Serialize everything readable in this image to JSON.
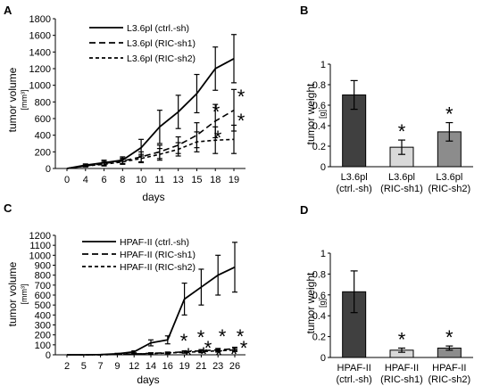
{
  "chart_data": [
    {
      "panel": "A",
      "type": "line",
      "ylabel": "tumor volume",
      "ylabel_unit": "[mm³]",
      "xlabel": "days",
      "ylim": [
        0,
        1800
      ],
      "yticks": [
        0,
        200,
        400,
        600,
        800,
        1000,
        1200,
        1400,
        1600,
        1800
      ],
      "categories": [
        "0",
        "4",
        "6",
        "8",
        "10",
        "11",
        "13",
        "15",
        "18",
        "19"
      ],
      "series": [
        {
          "name": "L3.6pl (ctrl.-sh)",
          "style": "solid",
          "values": [
            0,
            40,
            70,
            100,
            250,
            500,
            680,
            900,
            1200,
            1320
          ],
          "errors": [
            0,
            15,
            30,
            40,
            100,
            200,
            200,
            230,
            260,
            290
          ]
        },
        {
          "name": "L3.6pl (RIC-sh1)",
          "style": "dashed",
          "values": [
            0,
            30,
            60,
            90,
            140,
            200,
            280,
            400,
            570,
            700
          ],
          "errors": [
            0,
            10,
            25,
            35,
            60,
            80,
            100,
            150,
            200,
            250
          ]
        },
        {
          "name": "L3.6pl (RIC-sh2)",
          "style": "short-dashed",
          "values": [
            0,
            30,
            50,
            80,
            120,
            170,
            230,
            320,
            340,
            350
          ],
          "errors": [
            0,
            10,
            20,
            30,
            50,
            70,
            80,
            120,
            160,
            170
          ]
        }
      ],
      "annotations": [
        "*",
        "*",
        "*",
        "*"
      ]
    },
    {
      "panel": "B",
      "type": "bar",
      "ylabel": "tumor weight",
      "ylabel_unit": "[g]",
      "ylim": [
        0,
        1
      ],
      "yticks": [
        "0",
        "0.2",
        "0.4",
        "0.6",
        "0.8",
        "1"
      ],
      "categories": [
        [
          "L3.6pl",
          "(ctrl.-sh)"
        ],
        [
          "L3.6pl",
          "(RIC-sh1)"
        ],
        [
          "L3.6pl",
          "(RIC-sh2)"
        ]
      ],
      "values": [
        0.7,
        0.19,
        0.34
      ],
      "errors": [
        0.14,
        0.07,
        0.09
      ],
      "colors": [
        "#404040",
        "#d9d9d9",
        "#8c8c8c"
      ],
      "annotations": [
        "",
        "*",
        "*"
      ]
    },
    {
      "panel": "C",
      "type": "line",
      "ylabel": "tumor volume",
      "ylabel_unit": "[mm³]",
      "xlabel": "days",
      "ylim": [
        0,
        1200
      ],
      "yticks": [
        0,
        100,
        200,
        300,
        400,
        500,
        600,
        700,
        800,
        900,
        1000,
        1100,
        1200
      ],
      "categories": [
        "2",
        "5",
        "7",
        "9",
        "12",
        "14",
        "16",
        "19",
        "21",
        "23",
        "26"
      ],
      "series": [
        {
          "name": "HPAF-II (ctrl.-sh)",
          "style": "solid",
          "values": [
            0,
            0,
            2,
            10,
            30,
            120,
            150,
            560,
            680,
            800,
            880
          ],
          "errors": [
            0,
            0,
            2,
            5,
            10,
            30,
            40,
            160,
            180,
            200,
            250
          ]
        },
        {
          "name": "HPAF-II (RIC-sh1)",
          "style": "dashed",
          "values": [
            0,
            0,
            1,
            4,
            8,
            15,
            20,
            30,
            40,
            50,
            60
          ],
          "errors": [
            0,
            0,
            1,
            2,
            4,
            6,
            8,
            10,
            12,
            14,
            16
          ]
        },
        {
          "name": "HPAF-II (RIC-sh2)",
          "style": "short-dashed",
          "values": [
            0,
            0,
            1,
            3,
            7,
            12,
            18,
            25,
            32,
            40,
            48
          ],
          "errors": [
            0,
            0,
            1,
            2,
            3,
            5,
            7,
            9,
            11,
            13,
            15
          ]
        }
      ],
      "annotations": [
        "*",
        "*",
        "*",
        "*",
        "*",
        "*",
        "*",
        "*",
        "*",
        "*"
      ]
    },
    {
      "panel": "D",
      "type": "bar",
      "ylabel": "tumor weight",
      "ylabel_unit": "[g]",
      "ylim": [
        0,
        1
      ],
      "yticks": [
        "0",
        "0.2",
        "0.4",
        "0.6",
        "0.8",
        "1"
      ],
      "categories": [
        [
          "HPAF-II",
          "(ctrl.-sh)"
        ],
        [
          "HPAF-II",
          "(RIC-sh1)"
        ],
        [
          "HPAF-II",
          "(RIC-sh2)"
        ]
      ],
      "values": [
        0.63,
        0.07,
        0.09
      ],
      "errors": [
        0.2,
        0.02,
        0.02
      ],
      "colors": [
        "#404040",
        "#d9d9d9",
        "#8c8c8c"
      ],
      "annotations": [
        "",
        "*",
        "*"
      ]
    }
  ]
}
